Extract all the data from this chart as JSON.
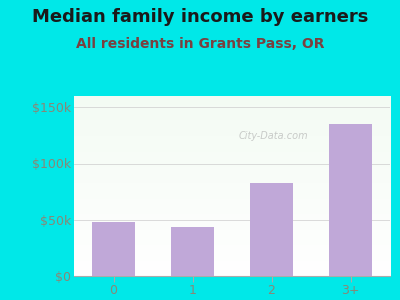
{
  "title": "Median family income by earners",
  "subtitle": "All residents in Grants Pass, OR",
  "categories": [
    "0",
    "1",
    "2",
    "3+"
  ],
  "values": [
    48000,
    44000,
    83000,
    135000
  ],
  "bar_color": "#c0a8d8",
  "bar_edge_color": "#b090c0",
  "title_color": "#1a1a1a",
  "subtitle_color": "#7a4040",
  "ylabel_ticks": [
    0,
    50000,
    100000,
    150000
  ],
  "ylabel_labels": [
    "$0",
    "$50k",
    "$100k",
    "$150k"
  ],
  "ylim": [
    0,
    160000
  ],
  "background_outer": "#00e8e8",
  "watermark": "City-Data.com",
  "title_fontsize": 13,
  "subtitle_fontsize": 10,
  "tick_fontsize": 9,
  "tick_color": "#888877"
}
